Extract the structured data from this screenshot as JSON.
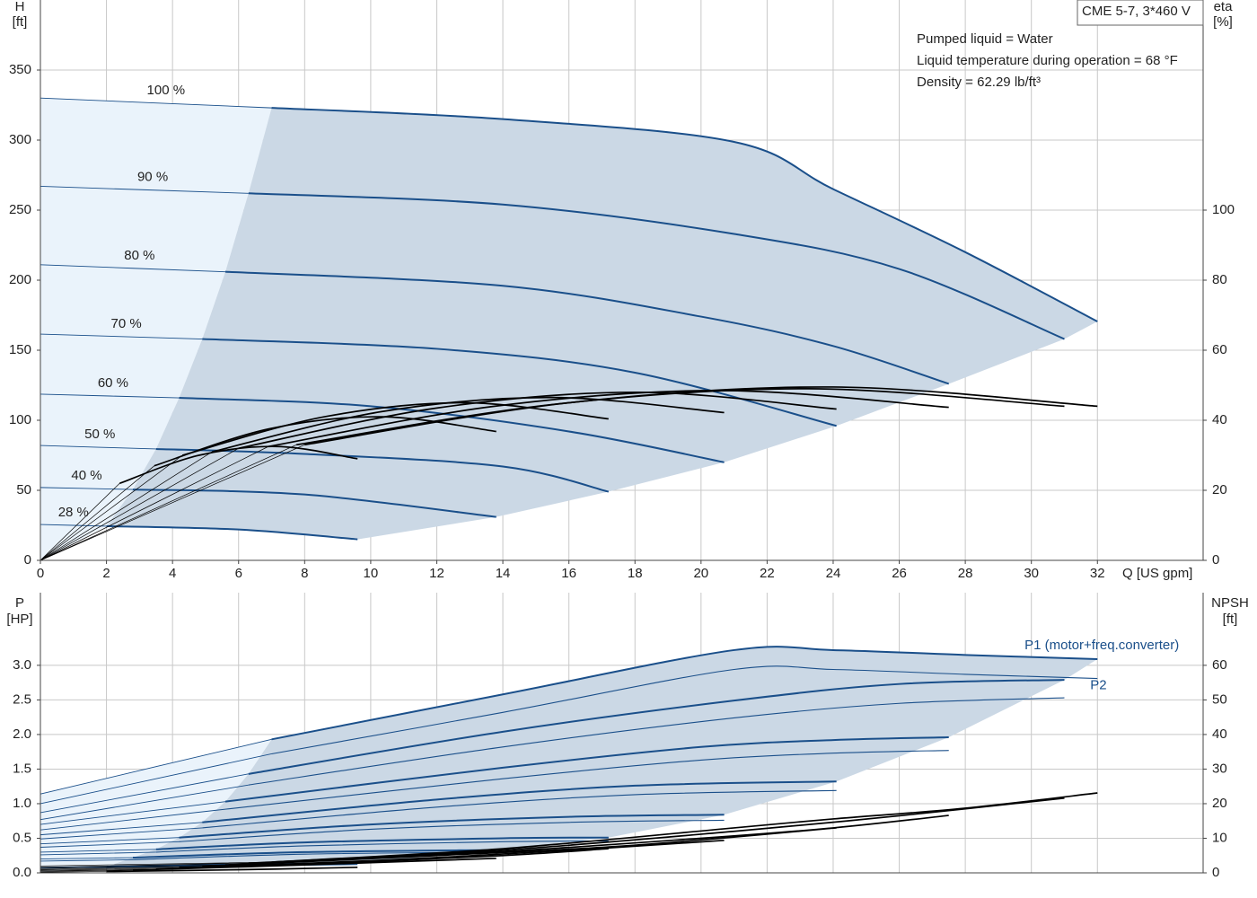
{
  "chart_data": [
    {
      "type": "line",
      "title": "CME 5-7, 3*460 V",
      "annotations": [
        "Pumped liquid = Water",
        "Liquid temperature during operation = 68 °F",
        "Density = 62.29 lb/ft³"
      ],
      "xlabel": "Q [US gpm]",
      "ylabel": [
        "H",
        "[ft]"
      ],
      "y2label": [
        "eta",
        "[%]"
      ],
      "xlim": [
        0,
        35.2
      ],
      "ylim": [
        0,
        400
      ],
      "y2lim": [
        0,
        160
      ],
      "grid": true,
      "xticks": [
        0,
        2,
        4,
        6,
        8,
        10,
        12,
        14,
        16,
        18,
        20,
        22,
        24,
        26,
        28,
        30,
        32
      ],
      "yticks": [
        0,
        50,
        100,
        150,
        200,
        250,
        300,
        350
      ],
      "y2ticks": [
        0,
        20,
        40,
        60,
        80,
        100
      ],
      "series": [
        {
          "name": "100 %",
          "color": "#1a4f8a",
          "x": [
            0,
            7,
            14,
            21,
            24,
            28,
            32
          ],
          "values": [
            330,
            323,
            315,
            298.7,
            265,
            220,
            170.5
          ]
        },
        {
          "name": "90 %",
          "color": "#1a4f8a",
          "x": [
            0,
            6.3,
            14,
            21,
            26,
            31
          ],
          "values": [
            267,
            262,
            254,
            233,
            208,
            158
          ]
        },
        {
          "name": "80 %",
          "color": "#1a4f8a",
          "x": [
            0,
            5.6,
            14,
            20,
            24,
            27.5
          ],
          "values": [
            211,
            206,
            196,
            174,
            153,
            126
          ]
        },
        {
          "name": "70 %",
          "color": "#1a4f8a",
          "x": [
            0,
            4.9,
            12,
            18,
            24.1
          ],
          "values": [
            161.5,
            158,
            151,
            134,
            96
          ]
        },
        {
          "name": "60 %",
          "color": "#1a4f8a",
          "x": [
            0,
            4.2,
            10,
            16,
            20.7
          ],
          "values": [
            118.6,
            116,
            110,
            92,
            70
          ]
        },
        {
          "name": "50 %",
          "color": "#1a4f8a",
          "x": [
            0,
            3.5,
            8,
            14,
            17.2
          ],
          "values": [
            82,
            79.5,
            76,
            67,
            49
          ]
        },
        {
          "name": "40 %",
          "color": "#1a4f8a",
          "x": [
            0,
            2.8,
            8,
            13.8
          ],
          "values": [
            52,
            50.6,
            47,
            31
          ]
        },
        {
          "name": "28 %",
          "color": "#1a4f8a",
          "x": [
            0,
            2,
            6,
            9.6
          ],
          "values": [
            25.6,
            24.4,
            22,
            15
          ]
        },
        {
          "axis": "y2",
          "color": "#000000",
          "x": [
            0,
            8,
            16,
            24,
            32
          ],
          "values": [
            0,
            33,
            45,
            49.5,
            44
          ]
        },
        {
          "axis": "y2",
          "color": "#000000",
          "x": [
            0,
            7.75,
            15.5,
            23.25,
            31
          ],
          "values": [
            0,
            33,
            44.5,
            49,
            44
          ]
        },
        {
          "axis": "y2",
          "color": "#000000",
          "x": [
            0,
            6.9,
            13.75,
            20.6,
            27.5
          ],
          "values": [
            0,
            32.5,
            44,
            48.5,
            43.7
          ]
        },
        {
          "axis": "y2",
          "color": "#000000",
          "x": [
            0,
            6,
            12,
            18.1,
            24.1
          ],
          "values": [
            0,
            32,
            43.5,
            48,
            43.2
          ]
        },
        {
          "axis": "y2",
          "color": "#000000",
          "x": [
            0,
            5.2,
            10.35,
            15.5,
            20.7
          ],
          "values": [
            0,
            31,
            42.5,
            46.5,
            42.2
          ]
        },
        {
          "axis": "y2",
          "color": "#000000",
          "x": [
            0,
            4.3,
            8.6,
            12.9,
            17.2
          ],
          "values": [
            0,
            30,
            41,
            45,
            40.4
          ]
        },
        {
          "axis": "y2",
          "color": "#000000",
          "x": [
            0,
            3.45,
            6.9,
            10.35,
            13.8
          ],
          "values": [
            0,
            27,
            37.5,
            41,
            36.8
          ]
        },
        {
          "axis": "y2",
          "color": "#000000",
          "x": [
            0,
            2.4,
            4.8,
            7.2,
            9.6
          ],
          "values": [
            0,
            22,
            30,
            32.5,
            29
          ]
        }
      ]
    },
    {
      "type": "line",
      "ylabel": [
        "P",
        "[HP]"
      ],
      "y2label": [
        "NPSH",
        "[ft]"
      ],
      "xlim": [
        0,
        35.2
      ],
      "ylim": [
        0,
        4.05
      ],
      "y2lim": [
        0,
        81
      ],
      "grid": true,
      "yticks": [
        {
          "value": 0,
          "label": "0.0"
        },
        0.5,
        {
          "value": 1,
          "label": "1.0"
        },
        1.5,
        {
          "value": 2,
          "label": "2.0"
        },
        2.5,
        {
          "value": 3,
          "label": "3.0"
        }
      ],
      "y2ticks": [
        0,
        10,
        20,
        30,
        40,
        50,
        60
      ],
      "series": [
        {
          "name": "P1 (motor+freq.converter)",
          "color": "#1a4f8a",
          "x": [
            0,
            7,
            14,
            21,
            24,
            28,
            32
          ],
          "values": [
            1.14,
            1.93,
            2.58,
            3.22,
            3.22,
            3.15,
            3.09
          ]
        },
        {
          "color": "#1a4f8a",
          "x": [
            0,
            6.3,
            14,
            21,
            26,
            31
          ],
          "values": [
            0.87,
            1.43,
            2.04,
            2.49,
            2.73,
            2.79
          ]
        },
        {
          "color": "#1a4f8a",
          "x": [
            0,
            5.6,
            14,
            20,
            24,
            27.5
          ],
          "values": [
            0.7,
            1.03,
            1.52,
            1.82,
            1.92,
            1.96
          ]
        },
        {
          "color": "#1a4f8a",
          "x": [
            0,
            4.9,
            12,
            18,
            24.1
          ],
          "values": [
            0.55,
            0.73,
            1.06,
            1.26,
            1.32
          ]
        },
        {
          "color": "#1a4f8a",
          "x": [
            0,
            4.2,
            10,
            16,
            20.7
          ],
          "values": [
            0.42,
            0.51,
            0.7,
            0.81,
            0.84
          ]
        },
        {
          "color": "#1a4f8a",
          "x": [
            0,
            3.5,
            8,
            14,
            17.2
          ],
          "values": [
            0.3,
            0.34,
            0.44,
            0.5,
            0.51
          ]
        },
        {
          "color": "#1a4f8a",
          "x": [
            0,
            2.8,
            8,
            13.8
          ],
          "values": [
            0.2,
            0.22,
            0.3,
            0.33
          ]
        },
        {
          "color": "#1a4f8a",
          "x": [
            0,
            2,
            6,
            9.6
          ],
          "values": [
            0.08,
            0.09,
            0.12,
            0.14
          ]
        },
        {
          "name": "P2",
          "color": "#1a4f8a",
          "x": [
            0,
            7,
            14,
            21,
            24,
            28,
            32
          ],
          "values": [
            1.0,
            1.72,
            2.32,
            2.94,
            2.94,
            2.87,
            2.81
          ]
        },
        {
          "color": "#1a4f8a",
          "x": [
            0,
            6.3,
            14,
            21,
            26,
            31
          ],
          "values": [
            0.77,
            1.27,
            1.82,
            2.24,
            2.45,
            2.53
          ]
        },
        {
          "color": "#1a4f8a",
          "x": [
            0,
            5.6,
            14,
            20,
            24,
            27.5
          ],
          "values": [
            0.62,
            0.92,
            1.36,
            1.63,
            1.73,
            1.77
          ]
        },
        {
          "color": "#1a4f8a",
          "x": [
            0,
            4.9,
            12,
            18,
            24.1
          ],
          "values": [
            0.49,
            0.65,
            0.95,
            1.13,
            1.19
          ]
        },
        {
          "color": "#1a4f8a",
          "x": [
            0,
            4.2,
            10,
            16,
            20.7
          ],
          "values": [
            0.37,
            0.45,
            0.63,
            0.73,
            0.76
          ]
        },
        {
          "color": "#1a4f8a",
          "x": [
            0,
            3.5,
            8,
            14,
            17.2
          ],
          "values": [
            0.26,
            0.3,
            0.39,
            0.45,
            0.46
          ]
        },
        {
          "color": "#1a4f8a",
          "x": [
            0,
            2.8,
            8,
            13.8
          ],
          "values": [
            0.17,
            0.19,
            0.27,
            0.3
          ]
        },
        {
          "color": "#1a4f8a",
          "x": [
            0,
            2,
            6,
            9.6
          ],
          "values": [
            0.07,
            0.08,
            0.1,
            0.12
          ]
        },
        {
          "axis": "y2",
          "color": "#000000",
          "x": [
            0,
            7,
            14,
            21,
            24,
            28,
            32
          ],
          "values": [
            2,
            3.1,
            7,
            13,
            15.6,
            18.7,
            23.1
          ]
        },
        {
          "axis": "y2",
          "color": "#000000",
          "x": [
            0,
            6.3,
            14,
            21,
            26,
            31
          ],
          "values": [
            1.6,
            2.8,
            6.6,
            12,
            16.5,
            21.6
          ]
        },
        {
          "axis": "y2",
          "color": "#000000",
          "x": [
            0,
            5.6,
            14,
            20,
            24,
            27.5
          ],
          "values": [
            1.3,
            2.3,
            6.2,
            10,
            13,
            16.6
          ]
        },
        {
          "axis": "y2",
          "color": "#000000",
          "x": [
            0,
            4.9,
            12,
            18,
            24.1
          ],
          "values": [
            1,
            1.9,
            5,
            8,
            13
          ]
        },
        {
          "axis": "y2",
          "color": "#000000",
          "x": [
            0,
            4.2,
            10,
            16,
            20.7
          ],
          "values": [
            0.8,
            1.5,
            3.5,
            6.5,
            9.4
          ]
        },
        {
          "axis": "y2",
          "color": "#000000",
          "x": [
            0,
            3.5,
            8,
            14,
            17.2
          ],
          "values": [
            0.6,
            1.1,
            2.5,
            5,
            7
          ]
        },
        {
          "axis": "y2",
          "color": "#000000",
          "x": [
            0,
            2.8,
            8,
            13.8
          ],
          "values": [
            0.4,
            0.8,
            2.3,
            4.2
          ]
        },
        {
          "axis": "y2",
          "color": "#000000",
          "x": [
            0,
            2,
            6,
            9.6
          ],
          "values": [
            0.2,
            0.4,
            0.9,
            1.6
          ]
        }
      ]
    }
  ]
}
